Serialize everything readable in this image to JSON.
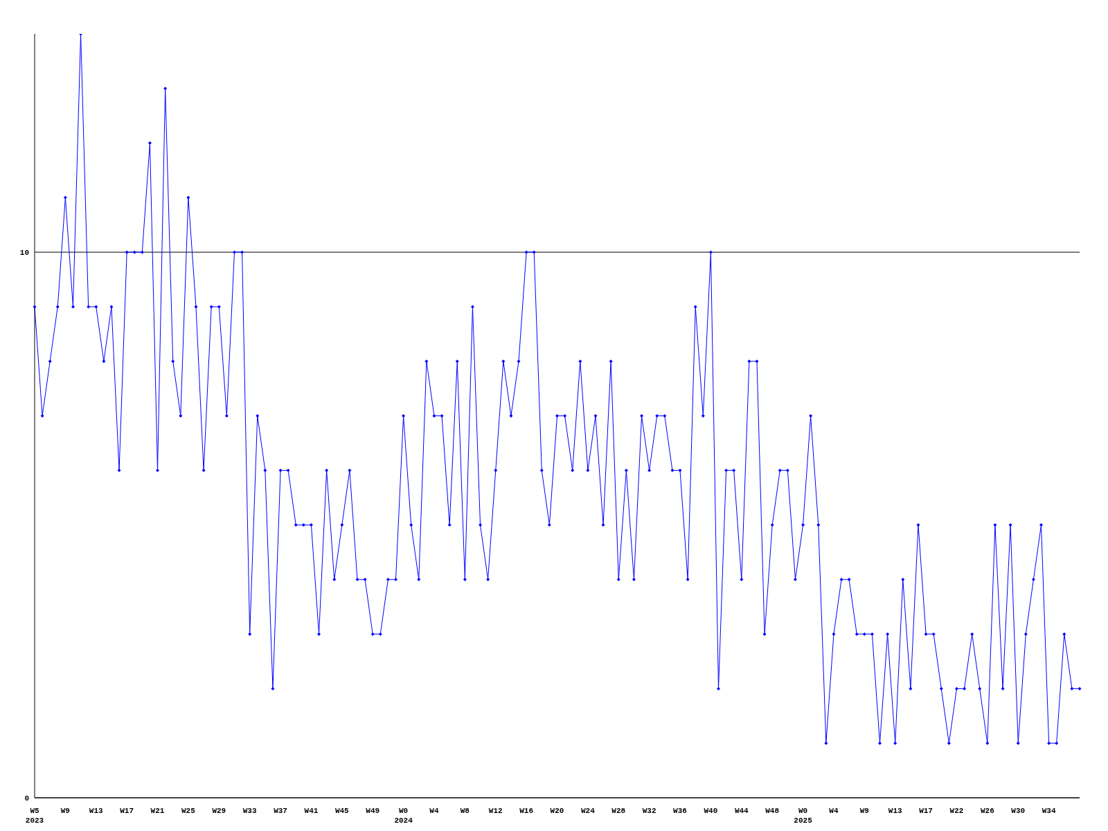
{
  "chart_data": {
    "type": "line",
    "categories": [
      "W5\n2023",
      null,
      null,
      null,
      "W9",
      null,
      null,
      null,
      "W13",
      null,
      null,
      null,
      "W17",
      null,
      null,
      null,
      "W21",
      null,
      null,
      null,
      "W25",
      null,
      null,
      null,
      "W29",
      null,
      null,
      null,
      "W33",
      null,
      null,
      null,
      "W37",
      null,
      null,
      null,
      "W41",
      null,
      null,
      null,
      "W45",
      null,
      null,
      null,
      "W49",
      null,
      null,
      null,
      "W0\n2024",
      null,
      null,
      null,
      "W4",
      null,
      null,
      null,
      "W8",
      null,
      null,
      null,
      "W12",
      null,
      null,
      null,
      "W16",
      null,
      null,
      null,
      "W20",
      null,
      null,
      null,
      "W24",
      null,
      null,
      null,
      "W28",
      null,
      null,
      null,
      "W32",
      null,
      null,
      null,
      "W36",
      null,
      null,
      null,
      "W40",
      null,
      null,
      null,
      "W44",
      null,
      null,
      null,
      "W48",
      null,
      null,
      null,
      "W0\n2025",
      null,
      null,
      null,
      "W4",
      null,
      null,
      null,
      "W9",
      null,
      null,
      null,
      "W13",
      null,
      null,
      null,
      "W17",
      null,
      null,
      null,
      "W22",
      null,
      null,
      null,
      "W26",
      null,
      null,
      null,
      "W30",
      null,
      null,
      null,
      "W34",
      null,
      null,
      null,
      null
    ],
    "series": [
      {
        "color": "#0000ff",
        "values": [
          9,
          7,
          8,
          9,
          11,
          9,
          14,
          9,
          9,
          8,
          9,
          6,
          10,
          10,
          10,
          12,
          6,
          13,
          8,
          7,
          11,
          9,
          6,
          9,
          9,
          7,
          10,
          10,
          3,
          7,
          6,
          2,
          6,
          6,
          5,
          5,
          5,
          3,
          6,
          4,
          5,
          6,
          4,
          4,
          3,
          3,
          4,
          4,
          7,
          5,
          4,
          8,
          7,
          7,
          5,
          8,
          4,
          9,
          5,
          4,
          6,
          8,
          7,
          8,
          10,
          10,
          6,
          5,
          7,
          7,
          6,
          8,
          6,
          7,
          5,
          8,
          4,
          6,
          4,
          7,
          6,
          7,
          7,
          6,
          6,
          4,
          9,
          7,
          10,
          2,
          6,
          6,
          4,
          8,
          8,
          3,
          5,
          6,
          6,
          4,
          5,
          7,
          5,
          1,
          3,
          4,
          4,
          3,
          3,
          3,
          1,
          3,
          1,
          4,
          2,
          5,
          3,
          3,
          2,
          1,
          2,
          2,
          3,
          2,
          1,
          5,
          2,
          5,
          1,
          3,
          4,
          5,
          1,
          1,
          3,
          2,
          2
        ]
      }
    ],
    "ylim": [
      0,
      14
    ],
    "yticks": [
      0,
      10
    ],
    "grid": "y",
    "legend": false,
    "marker": "diamond",
    "line_style": "solid"
  }
}
